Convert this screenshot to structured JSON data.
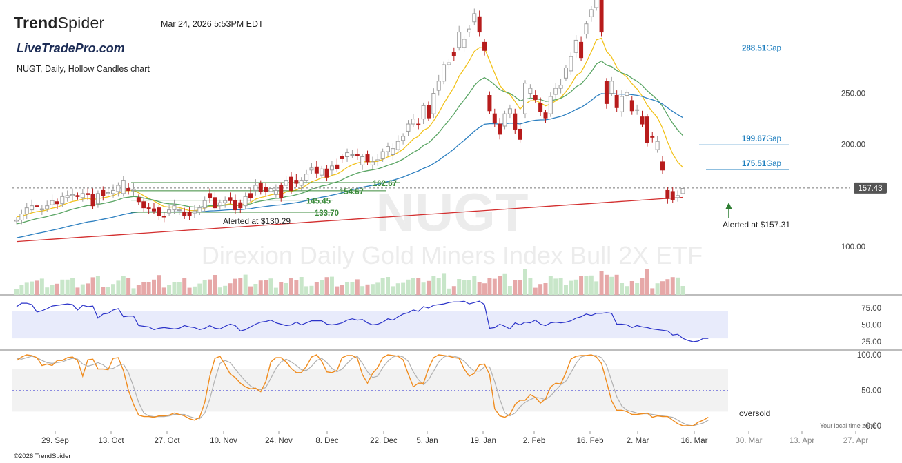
{
  "header": {
    "brand_name_bold": "Trend",
    "brand_name_thin": "Spider",
    "timestamp": "Mar 24, 2026 5:53PM EDT",
    "watermark_brand": "LiveTradePro.com",
    "description": "NUGT, Daily, Hollow Candles chart",
    "copyright": "©2026 TrendSpider",
    "local_time_note": "Your local time zone"
  },
  "colors": {
    "up_candle": "#9e9e9e",
    "down_candle": "#b71c1c",
    "ema_fast": "#f2c21b",
    "ema_mid": "#5aa564",
    "ma_blue": "#2c7fc0",
    "ma_red": "#d32f2f",
    "rsi_line": "#2b33c9",
    "stoch_k": "#f08c1e",
    "stoch_d": "#b0b0b0",
    "support_line": "#3b8b3b",
    "gap_line": "#1f7fbf",
    "vol_up": "#c8e6c9",
    "vol_down": "#e6a8a8",
    "price_badge": "#555555"
  },
  "chart_data": {
    "type": "candlestick",
    "symbol": "NUGT",
    "watermark_symbol": "NUGT",
    "watermark_name": "Direxion Daily Gold Miners Index Bull 2X ETF",
    "last_price_label": "157.43",
    "last_price": 157.43,
    "y_axis_ticks": [
      {
        "label": "250.00",
        "value": 250
      },
      {
        "label": "200.00",
        "value": 200
      },
      {
        "label": "100.00",
        "value": 100
      }
    ],
    "x_axis_ticks": [
      "29. Sep",
      "13. Oct",
      "27. Oct",
      "10. Nov",
      "24. Nov",
      "8. Dec",
      "22. Dec",
      "5. Jan",
      "19. Jan",
      "2. Feb",
      "16. Feb",
      "2. Mar",
      "16. Mar",
      "30. Mar",
      "13. Apr",
      "27. Apr"
    ],
    "candles": [
      [
        125,
        126
      ],
      [
        126,
        132
      ],
      [
        132,
        138
      ],
      [
        136,
        140
      ],
      [
        140,
        139
      ],
      [
        136,
        137
      ],
      [
        137,
        140
      ],
      [
        141,
        145
      ],
      [
        144,
        142
      ],
      [
        142,
        149
      ],
      [
        148,
        150
      ],
      [
        150,
        151
      ],
      [
        150,
        149
      ],
      [
        148,
        152
      ],
      [
        152,
        151
      ],
      [
        151,
        140
      ],
      [
        142,
        152
      ],
      [
        155,
        150
      ],
      [
        152,
        153
      ],
      [
        152,
        155
      ],
      [
        154,
        160
      ],
      [
        152,
        165
      ],
      [
        157,
        155
      ],
      [
        155,
        156
      ],
      [
        148,
        144
      ],
      [
        144,
        138
      ],
      [
        138,
        137
      ],
      [
        137,
        135
      ],
      [
        138,
        130
      ],
      [
        130,
        129
      ],
      [
        133,
        136
      ],
      [
        136,
        140
      ],
      [
        136,
        136
      ],
      [
        134,
        130
      ],
      [
        134,
        130
      ],
      [
        133,
        135
      ],
      [
        134,
        138
      ],
      [
        138,
        145
      ],
      [
        152,
        148
      ],
      [
        148,
        138
      ],
      [
        140,
        143
      ],
      [
        143,
        145
      ],
      [
        148,
        145
      ],
      [
        145,
        136
      ],
      [
        143,
        138
      ],
      [
        140,
        149
      ],
      [
        152,
        148
      ],
      [
        155,
        160
      ],
      [
        162,
        154
      ],
      [
        158,
        154
      ],
      [
        154,
        157
      ],
      [
        151,
        155
      ],
      [
        160,
        148
      ],
      [
        160,
        165
      ],
      [
        168,
        155
      ],
      [
        165,
        162
      ],
      [
        160,
        165
      ],
      [
        165,
        171
      ],
      [
        175,
        177
      ],
      [
        178,
        172
      ],
      [
        170,
        176
      ],
      [
        176,
        168
      ],
      [
        175,
        179
      ],
      [
        180,
        176
      ],
      [
        188,
        186
      ],
      [
        188,
        192
      ],
      [
        190,
        190
      ],
      [
        190,
        189
      ],
      [
        180,
        188
      ],
      [
        190,
        183
      ],
      [
        180,
        183
      ],
      [
        184,
        185
      ],
      [
        186,
        193
      ],
      [
        193,
        198
      ],
      [
        190,
        196
      ],
      [
        195,
        203
      ],
      [
        204,
        208
      ],
      [
        213,
        220
      ],
      [
        220,
        225
      ],
      [
        220,
        219
      ],
      [
        225,
        238
      ],
      [
        238,
        226
      ],
      [
        230,
        250
      ],
      [
        253,
        262
      ],
      [
        262,
        278
      ],
      [
        278,
        280
      ],
      [
        290,
        287
      ],
      [
        295,
        310
      ],
      [
        295,
        303
      ],
      [
        310,
        313
      ],
      [
        320,
        328
      ],
      [
        325,
        310
      ],
      [
        300,
        292
      ],
      [
        248,
        233
      ],
      [
        230,
        221
      ],
      [
        220,
        210
      ],
      [
        218,
        230
      ],
      [
        230,
        235
      ],
      [
        230,
        215
      ],
      [
        215,
        205
      ],
      [
        230,
        260
      ],
      [
        250,
        255
      ],
      [
        248,
        244
      ],
      [
        240,
        232
      ],
      [
        231,
        226
      ],
      [
        230,
        247
      ],
      [
        249,
        255
      ],
      [
        255,
        258
      ],
      [
        265,
        275
      ],
      [
        272,
        286
      ],
      [
        290,
        302
      ],
      [
        300,
        285
      ],
      [
        308,
        318
      ],
      [
        325,
        332
      ],
      [
        334,
        350
      ],
      [
        345,
        310
      ],
      [
        262,
        240
      ],
      [
        250,
        262
      ],
      [
        248,
        236
      ],
      [
        232,
        247
      ],
      [
        248,
        251
      ],
      [
        243,
        233
      ],
      [
        234,
        234
      ],
      [
        227,
        220
      ],
      [
        227,
        202
      ],
      [
        208,
        207
      ],
      [
        195,
        203
      ],
      [
        183,
        175
      ],
      [
        155,
        147
      ],
      [
        154,
        146
      ],
      [
        148,
        150
      ],
      [
        152,
        157
      ]
    ],
    "labels": [
      {
        "text": "162.67",
        "value": 162.67
      },
      {
        "text": "154.67",
        "value": 154.67
      },
      {
        "text": "145.45",
        "value": 145.45
      },
      {
        "text": "133.70",
        "value": 133.7
      },
      {
        "text": "288.51",
        "value": 288.51,
        "suffix": "Gap"
      },
      {
        "text": "199.67",
        "value": 199.67,
        "suffix": "Gap"
      },
      {
        "text": "175.51",
        "value": 175.51,
        "suffix": "Gap"
      }
    ],
    "annotations": [
      "Alerted at $130.29",
      "Alerted at $157.31"
    ],
    "rsi": {
      "ticks": [
        "75.00",
        "50.00",
        "25.00"
      ],
      "tick_values": [
        75,
        50,
        25
      ],
      "band": [
        30,
        70
      ],
      "values": [
        77,
        82,
        82,
        80,
        69,
        71,
        74,
        78,
        79,
        80,
        81,
        80,
        72,
        79,
        77,
        78,
        60,
        66,
        67,
        72,
        74,
        62,
        63,
        63,
        49,
        48,
        47,
        43,
        45,
        46,
        45,
        44,
        45,
        49,
        47,
        46,
        43,
        45,
        49,
        45,
        44,
        48,
        51,
        49,
        41,
        43,
        47,
        51,
        54,
        55,
        57,
        53,
        51,
        49,
        50,
        54,
        50,
        53,
        56,
        56,
        56,
        51,
        50,
        51,
        53,
        57,
        59,
        57,
        58,
        53,
        50,
        51,
        54,
        59,
        57,
        62,
        66,
        68,
        72,
        70,
        77,
        75,
        79,
        80,
        81,
        83,
        84,
        84,
        85,
        81,
        83,
        85,
        80,
        45,
        46,
        51,
        48,
        44,
        53,
        50,
        54,
        53,
        57,
        51,
        49,
        53,
        54,
        53,
        54,
        56,
        60,
        62,
        66,
        64,
        67,
        67,
        68,
        67,
        51,
        51,
        50,
        46,
        49,
        47,
        46,
        44,
        43,
        42,
        41,
        35,
        36,
        30,
        27,
        25,
        26,
        30,
        30
      ]
    },
    "stochastic": {
      "ticks": [
        "100.00",
        "50.00",
        "0.00"
      ],
      "tick_values": [
        100,
        50,
        0
      ],
      "band": [
        20,
        80
      ],
      "mid": 50,
      "oversold_label": "oversold",
      "k_values": [
        92,
        97,
        100,
        99,
        96,
        85,
        87,
        85,
        92,
        92,
        96,
        97,
        92,
        70,
        93,
        94,
        80,
        80,
        79,
        95,
        96,
        78,
        50,
        30,
        15,
        13,
        13,
        12,
        14,
        14,
        15,
        18,
        16,
        14,
        10,
        8,
        12,
        33,
        70,
        95,
        98,
        86,
        73,
        68,
        60,
        55,
        52,
        53,
        48,
        62,
        90,
        96,
        96,
        90,
        81,
        75,
        75,
        84,
        97,
        100,
        91,
        76,
        75,
        78,
        96,
        99,
        99,
        95,
        72,
        60,
        74,
        82,
        96,
        100,
        99,
        98,
        93,
        73,
        55,
        60,
        60,
        81,
        96,
        100,
        99,
        98,
        96,
        95,
        80,
        70,
        74,
        86,
        87,
        72,
        24,
        14,
        12,
        16,
        30,
        36,
        36,
        44,
        40,
        32,
        38,
        55,
        60,
        59,
        75,
        94,
        98,
        99,
        99,
        100,
        97,
        88,
        62,
        35,
        22,
        22,
        20,
        16,
        16,
        17,
        18,
        12,
        14,
        13,
        13,
        8,
        3,
        0,
        0,
        0,
        5,
        8,
        12
      ],
      "d_values": [
        95,
        94,
        96,
        98,
        96,
        92,
        89,
        88,
        89,
        90,
        93,
        95,
        94,
        87,
        84,
        86,
        89,
        86,
        80,
        81,
        85,
        87,
        75,
        55,
        33,
        18,
        14,
        13,
        13,
        13,
        14,
        16,
        16,
        16,
        13,
        11,
        10,
        18,
        38,
        65,
        88,
        92,
        89,
        80,
        71,
        63,
        56,
        52,
        51,
        54,
        67,
        81,
        90,
        94,
        90,
        85,
        79,
        78,
        84,
        92,
        95,
        89,
        81,
        76,
        80,
        88,
        95,
        98,
        88,
        76,
        68,
        70,
        82,
        91,
        97,
        99,
        97,
        91,
        76,
        65,
        58,
        65,
        77,
        90,
        97,
        99,
        98,
        96,
        91,
        83,
        77,
        77,
        83,
        83,
        62,
        38,
        18,
        14,
        18,
        27,
        33,
        37,
        40,
        39,
        37,
        42,
        50,
        58,
        63,
        75,
        88,
        97,
        99,
        99,
        99,
        96,
        85,
        63,
        41,
        28,
        22,
        20,
        18,
        17,
        17,
        16,
        15,
        14,
        13,
        12,
        8,
        4,
        1,
        0,
        2,
        4,
        8
      ]
    }
  }
}
